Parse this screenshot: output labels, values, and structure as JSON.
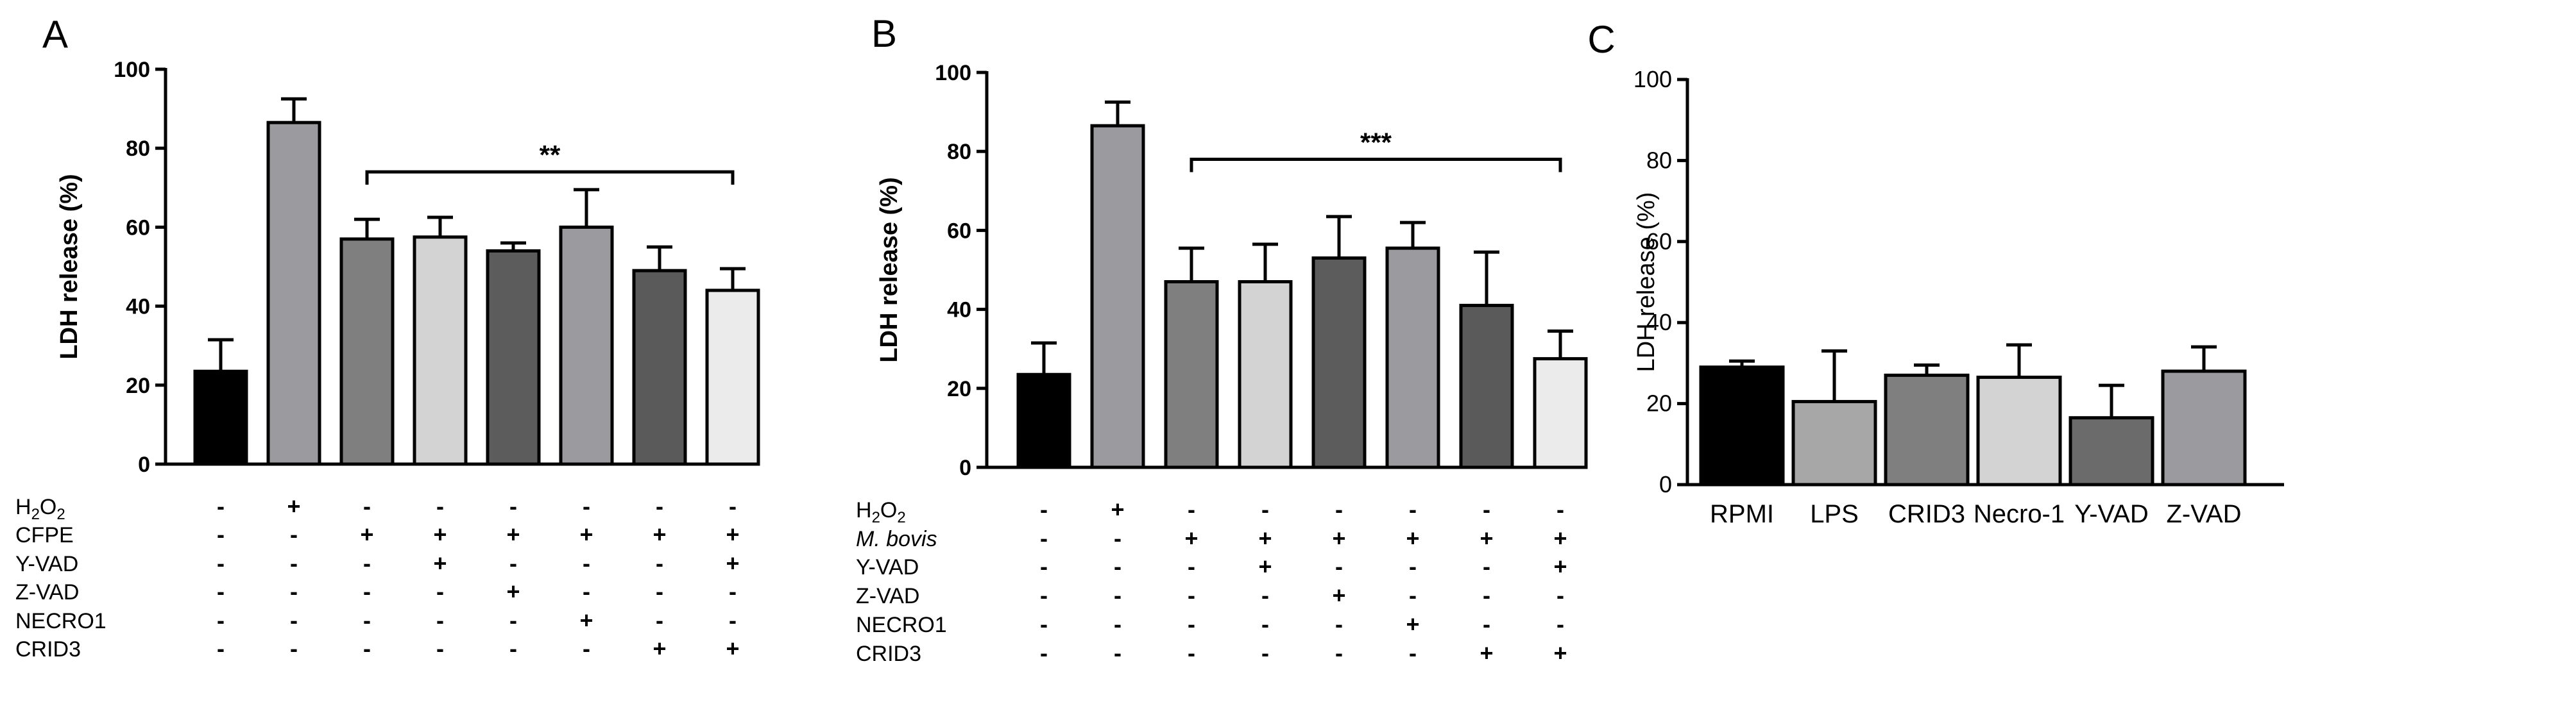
{
  "chart_data": [
    {
      "panel": "A",
      "type": "bar",
      "ylabel": "LDH release (%)",
      "ylim": [
        0,
        100
      ],
      "yticks": [
        "0",
        "20",
        "40",
        "60",
        "80",
        "100"
      ],
      "values": [
        23.5,
        86.5,
        57.0,
        57.5,
        54.0,
        60.0,
        49.0,
        44.0
      ],
      "errors": [
        8.0,
        6.0,
        5.0,
        5.0,
        2.0,
        9.5,
        6.0,
        5.5
      ],
      "colors": [
        "#000000",
        "#9b9b9f",
        "#7f7f7f",
        "#d3d3d3",
        "#5c5c5c",
        "#9b9b9f",
        "#5a5a5a",
        "#ebebeb"
      ],
      "significance": {
        "label": "**",
        "from": 3,
        "to": 8,
        "y": 74
      },
      "treatments": [
        {
          "label": "H2O2",
          "label_main": "H",
          "label_sub": "2",
          "label_tail": "O",
          "label_sub2": "2",
          "italic": false,
          "signs": [
            "-",
            "+",
            "-",
            "-",
            "-",
            "-",
            "-",
            "-"
          ]
        },
        {
          "label": "CFPE",
          "italic": false,
          "signs": [
            "-",
            "-",
            "+",
            "+",
            "+",
            "+",
            "+",
            "+"
          ]
        },
        {
          "label": "Y-VAD",
          "italic": false,
          "signs": [
            "-",
            "-",
            "-",
            "+",
            "-",
            "-",
            "-",
            "+"
          ]
        },
        {
          "label": "Z-VAD",
          "italic": false,
          "signs": [
            "-",
            "-",
            "-",
            "-",
            "+",
            "-",
            "-",
            "-"
          ]
        },
        {
          "label": "NECRO1",
          "italic": false,
          "signs": [
            "-",
            "-",
            "-",
            "-",
            "-",
            "+",
            "-",
            "-"
          ]
        },
        {
          "label": "CRID3",
          "italic": false,
          "signs": [
            "-",
            "-",
            "-",
            "-",
            "-",
            "-",
            "+",
            "+"
          ]
        }
      ]
    },
    {
      "panel": "B",
      "type": "bar",
      "ylabel": "LDH release (%)",
      "ylim": [
        0,
        100
      ],
      "yticks": [
        "0",
        "20",
        "40",
        "60",
        "80",
        "100"
      ],
      "values": [
        23.5,
        86.5,
        47.0,
        47.0,
        53.0,
        55.5,
        41.0,
        27.5
      ],
      "errors": [
        8.0,
        6.0,
        8.5,
        9.5,
        10.5,
        6.5,
        13.5,
        7.0
      ],
      "colors": [
        "#000000",
        "#9b9b9f",
        "#7f7f7f",
        "#d3d3d3",
        "#5c5c5c",
        "#9b9b9f",
        "#5a5a5a",
        "#ebebeb"
      ],
      "significance": {
        "label": "***",
        "from": 3,
        "to": 8,
        "y": 78
      },
      "treatments": [
        {
          "label": "H2O2",
          "label_main": "H",
          "label_sub": "2",
          "label_tail": "O",
          "label_sub2": "2",
          "italic": false,
          "signs": [
            "-",
            "+",
            "-",
            "-",
            "-",
            "-",
            "-",
            "-"
          ]
        },
        {
          "label": "M. bovis",
          "italic": true,
          "signs": [
            "-",
            "-",
            "+",
            "+",
            "+",
            "+",
            "+",
            "+"
          ]
        },
        {
          "label": "Y-VAD",
          "italic": false,
          "signs": [
            "-",
            "-",
            "-",
            "+",
            "-",
            "-",
            "-",
            "+"
          ]
        },
        {
          "label": "Z-VAD",
          "italic": false,
          "signs": [
            "-",
            "-",
            "-",
            "-",
            "+",
            "-",
            "-",
            "-"
          ]
        },
        {
          "label": "NECRO1",
          "italic": false,
          "signs": [
            "-",
            "-",
            "-",
            "-",
            "-",
            "+",
            "-",
            "-"
          ]
        },
        {
          "label": "CRID3",
          "italic": false,
          "signs": [
            "-",
            "-",
            "-",
            "-",
            "-",
            "-",
            "+",
            "+"
          ]
        }
      ]
    },
    {
      "panel": "C",
      "type": "bar",
      "ylabel": "LDH release (%)",
      "ylim": [
        0,
        100
      ],
      "yticks": [
        "0",
        "20",
        "40",
        "60",
        "80",
        "100"
      ],
      "categories": [
        "RPMI",
        "LPS",
        "CRID3",
        "Necro-1",
        "Y-VAD",
        "Z-VAD"
      ],
      "values": [
        29.0,
        20.5,
        27.0,
        26.5,
        16.5,
        28.0
      ],
      "errors": [
        1.5,
        12.5,
        2.5,
        8.0,
        8.0,
        6.0
      ],
      "colors": [
        "#000000",
        "#a7a7a7",
        "#7f7f7f",
        "#d3d3d3",
        "#6b6b6b",
        "#9b9b9f"
      ]
    }
  ]
}
